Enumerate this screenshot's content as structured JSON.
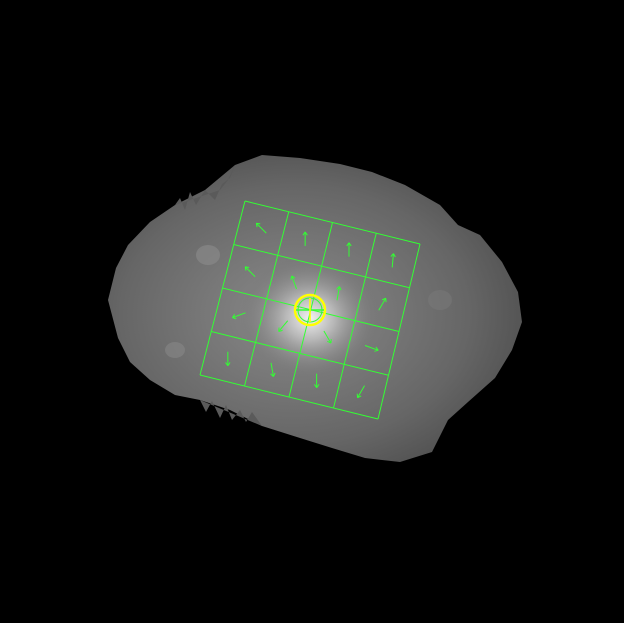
{
  "image": {
    "background_color": "#000000",
    "blob_color": "#6e6e6e",
    "blob_bright_color": "#dcdcdc",
    "grid_color": "#33ff33",
    "marker_color": "#ffff00"
  },
  "grid": {
    "rows": 4,
    "cols": 4,
    "arrow_directions_deg": [
      [
        225,
        270,
        270,
        275
      ],
      [
        225,
        250,
        280,
        300
      ],
      [
        160,
        130,
        60,
        20
      ],
      [
        90,
        80,
        90,
        120
      ]
    ]
  },
  "marker": {
    "type": "circle-with-crosshair"
  }
}
